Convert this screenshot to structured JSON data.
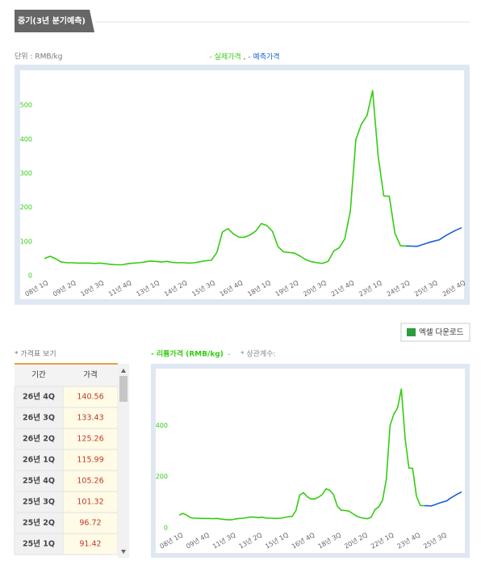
{
  "tab_title": "중기(3년 분기예측)",
  "unit_label": "단위 : RMB/kg",
  "legend_separator": ",",
  "excel_button": "엑셀 다운로드",
  "price_table": {
    "title": "* 가격표 보기",
    "columns": [
      "기간",
      "가격"
    ],
    "rows": [
      [
        "26년 4Q",
        140.56
      ],
      [
        "26년 3Q",
        133.43
      ],
      [
        "26년 2Q",
        125.26
      ],
      [
        "26년 1Q",
        115.99
      ],
      [
        "25년 4Q",
        105.26
      ],
      [
        "25년 3Q",
        101.32
      ],
      [
        "25년 2Q",
        96.72
      ],
      [
        "25년 1Q",
        91.42
      ]
    ]
  },
  "chart_data": [
    {
      "type": "line",
      "categories": [
        "08년 1Q",
        null,
        null,
        null,
        null,
        "09년 2Q",
        null,
        null,
        null,
        null,
        "10년 3Q",
        null,
        null,
        null,
        null,
        "11년 4Q",
        null,
        null,
        null,
        null,
        "13년 1Q",
        null,
        null,
        null,
        null,
        "14년 2Q",
        null,
        null,
        null,
        null,
        "15년 3Q",
        null,
        null,
        null,
        null,
        "16년 4Q",
        null,
        null,
        null,
        null,
        "18년 1Q",
        null,
        null,
        null,
        null,
        "19년 2Q",
        null,
        null,
        null,
        null,
        "20년 3Q",
        null,
        null,
        null,
        null,
        "21년 4Q",
        null,
        null,
        null,
        null,
        "23년 1Q",
        null,
        null,
        null,
        null,
        "24년 2Q",
        null,
        null,
        null,
        null,
        "25년 3Q",
        null,
        null,
        null,
        null,
        "26년 4Q"
      ],
      "series": [
        {
          "name": "- 실제가격",
          "color": "#33cc11",
          "values": [
            50,
            57,
            50,
            40,
            38,
            38,
            37,
            37,
            37,
            36,
            37,
            35,
            33,
            32,
            32,
            35,
            37,
            38,
            40,
            43,
            42,
            40,
            42,
            39,
            38,
            38,
            37,
            38,
            41,
            44,
            45,
            68,
            128,
            138,
            122,
            113,
            113,
            120,
            131,
            153,
            147,
            130,
            85,
            70,
            68,
            66,
            57,
            47,
            41,
            38,
            36,
            42,
            72,
            82,
            108,
            190,
            400,
            445,
            470,
            543,
            350,
            234,
            233,
            125,
            88,
            87,
            null,
            null,
            null,
            null,
            null,
            null,
            null,
            null,
            null,
            null
          ]
        },
        {
          "name": "- 예측가격",
          "color": "#1a5fd6",
          "values": [
            null,
            null,
            null,
            null,
            null,
            null,
            null,
            null,
            null,
            null,
            null,
            null,
            null,
            null,
            null,
            null,
            null,
            null,
            null,
            null,
            null,
            null,
            null,
            null,
            null,
            null,
            null,
            null,
            null,
            null,
            null,
            null,
            null,
            null,
            null,
            null,
            null,
            null,
            null,
            null,
            null,
            null,
            null,
            null,
            null,
            null,
            null,
            null,
            null,
            null,
            null,
            null,
            null,
            null,
            null,
            null,
            null,
            null,
            null,
            null,
            null,
            null,
            null,
            null,
            null,
            87,
            86.5,
            86,
            91.42,
            96.72,
            101.32,
            105.26,
            115.99,
            125.26,
            133.43,
            140.56
          ]
        }
      ],
      "ylim": [
        0,
        600
      ],
      "yticks": [
        0,
        100,
        200,
        300,
        400,
        500
      ]
    },
    {
      "type": "line",
      "categories": [
        "08년 1Q",
        null,
        null,
        null,
        null,
        null,
        null,
        "09년 4Q",
        null,
        null,
        null,
        null,
        null,
        null,
        "11년 3Q",
        null,
        null,
        null,
        null,
        null,
        null,
        "13년 2Q",
        null,
        null,
        null,
        null,
        null,
        null,
        "15년 1Q",
        null,
        null,
        null,
        null,
        null,
        null,
        "16년 4Q",
        null,
        null,
        null,
        null,
        null,
        null,
        "18년 3Q",
        null,
        null,
        null,
        null,
        null,
        null,
        "20년 2Q",
        null,
        null,
        null,
        null,
        null,
        null,
        "22년 1Q",
        null,
        null,
        null,
        null,
        null,
        null,
        "23년 4Q",
        null,
        null,
        null,
        null,
        null,
        null,
        "25년 3Q",
        null,
        null,
        null,
        null,
        null
      ],
      "series": [
        {
          "name": "- 리튬가격 (RMB/kg)",
          "color": "#33cc11",
          "values": [
            50,
            57,
            50,
            40,
            38,
            38,
            37,
            37,
            37,
            36,
            37,
            35,
            33,
            32,
            32,
            35,
            37,
            38,
            40,
            43,
            42,
            40,
            42,
            39,
            38,
            38,
            37,
            38,
            41,
            44,
            45,
            68,
            128,
            138,
            122,
            113,
            113,
            120,
            131,
            153,
            147,
            130,
            85,
            70,
            68,
            66,
            57,
            47,
            41,
            38,
            36,
            42,
            72,
            82,
            108,
            190,
            400,
            445,
            470,
            543,
            350,
            234,
            233,
            125,
            88,
            87,
            null,
            null,
            null,
            null,
            null,
            null,
            null,
            null,
            null,
            null
          ]
        },
        {
          "color": "#1a5fd6",
          "values": [
            null,
            null,
            null,
            null,
            null,
            null,
            null,
            null,
            null,
            null,
            null,
            null,
            null,
            null,
            null,
            null,
            null,
            null,
            null,
            null,
            null,
            null,
            null,
            null,
            null,
            null,
            null,
            null,
            null,
            null,
            null,
            null,
            null,
            null,
            null,
            null,
            null,
            null,
            null,
            null,
            null,
            null,
            null,
            null,
            null,
            null,
            null,
            null,
            null,
            null,
            null,
            null,
            null,
            null,
            null,
            null,
            null,
            null,
            null,
            null,
            null,
            null,
            null,
            null,
            null,
            87,
            86.5,
            86,
            91.42,
            96.72,
            101.32,
            105.26,
            115.99,
            125.26,
            133.43,
            140.56
          ]
        }
      ],
      "annotations": [
        "-",
        "* 상관계수:"
      ],
      "ylim": [
        0,
        610
      ],
      "yticks": [
        0,
        200,
        400
      ]
    }
  ]
}
